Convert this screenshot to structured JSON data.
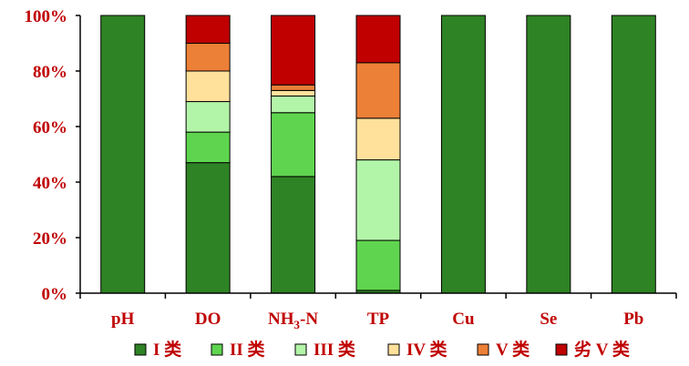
{
  "chart_data": {
    "type": "bar",
    "stacked": true,
    "categories": [
      "pH",
      "DO",
      "NH3-N",
      "TP",
      "Cu",
      "Se",
      "Pb"
    ],
    "category_labels": [
      {
        "main": "pH",
        "sub": "",
        "tail": ""
      },
      {
        "main": "DO",
        "sub": "",
        "tail": ""
      },
      {
        "main": "NH",
        "sub": "3",
        "tail": "-N"
      },
      {
        "main": "TP",
        "sub": "",
        "tail": ""
      },
      {
        "main": "Cu",
        "sub": "",
        "tail": ""
      },
      {
        "main": "Se",
        "sub": "",
        "tail": ""
      },
      {
        "main": "Pb",
        "sub": "",
        "tail": ""
      }
    ],
    "series": [
      {
        "name": "I 类",
        "color": "#2e8324",
        "values": [
          100,
          47,
          42,
          1,
          100,
          100,
          100
        ]
      },
      {
        "name": "II 类",
        "color": "#5fd54f",
        "values": [
          0,
          11,
          23,
          18,
          0,
          0,
          0
        ]
      },
      {
        "name": "III 类",
        "color": "#b3f5a8",
        "values": [
          0,
          11,
          6,
          29,
          0,
          0,
          0
        ]
      },
      {
        "name": "IV 类",
        "color": "#ffe19b",
        "values": [
          0,
          11,
          2,
          15,
          0,
          0,
          0
        ]
      },
      {
        "name": "V 类",
        "color": "#ed8037",
        "values": [
          0,
          10,
          2,
          20,
          0,
          0,
          0
        ]
      },
      {
        "name": "劣 V 类",
        "color": "#c00000",
        "values": [
          0,
          10,
          25,
          17,
          0,
          0,
          0
        ]
      }
    ],
    "ylim": [
      0,
      100
    ],
    "yticks": [
      "0%",
      "20%",
      "40%",
      "60%",
      "80%",
      "100%"
    ],
    "legend_position": "bottom",
    "grid": false
  }
}
